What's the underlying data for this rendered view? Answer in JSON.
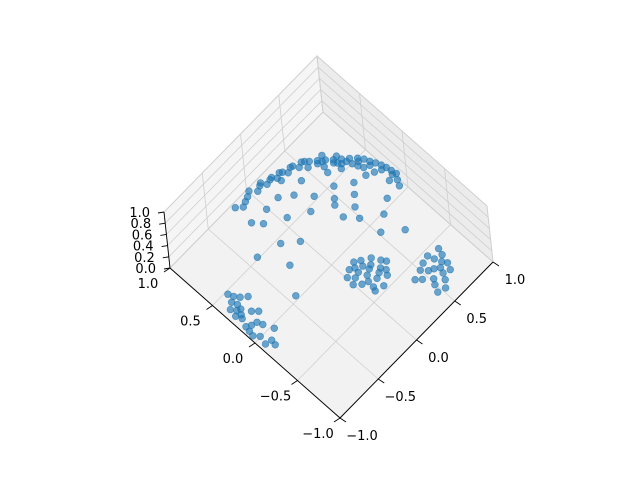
{
  "chart_data": {
    "type": "scatter",
    "projection": "3d",
    "title": "",
    "xlabel": "",
    "ylabel": "",
    "zlabel": "",
    "xlim": [
      -1.0,
      1.0
    ],
    "ylim": [
      -1.0,
      1.0
    ],
    "zlim": [
      0.0,
      1.0
    ],
    "grid": true,
    "point_color": "#1f77b4",
    "pane_colors": {
      "floor": "#f2f2f2",
      "back_left": "#f5f5f5",
      "back_right": "#ececec"
    },
    "x_ticks": [
      "−1.0",
      "−0.5",
      "0.0",
      "0.5",
      "1.0"
    ],
    "x_tick_values": [
      -1.0,
      -0.5,
      0.0,
      0.5,
      1.0
    ],
    "y_ticks": [
      "−1.0",
      "−0.5",
      "0.0",
      "0.5",
      "1.0"
    ],
    "y_tick_values": [
      -1.0,
      -0.5,
      0.0,
      0.5,
      1.0
    ],
    "z_ticks": [
      "0.0",
      "0.2",
      "0.4",
      "0.6",
      "0.8",
      "1.0"
    ],
    "z_tick_values": [
      0.0,
      0.2,
      0.4,
      0.6,
      0.8,
      1.0
    ],
    "series": [
      {
        "points": [
          [
            -0.95,
            0.15,
            0.02
          ],
          [
            -0.92,
            0.22,
            0.03
          ],
          [
            -0.97,
            0.05,
            0.02
          ],
          [
            -0.9,
            0.3,
            0.04
          ],
          [
            -0.88,
            0.38,
            0.05
          ],
          [
            -0.85,
            0.45,
            0.06
          ],
          [
            -0.93,
            0.0,
            0.02
          ],
          [
            -0.95,
            -0.08,
            0.02
          ],
          [
            -0.9,
            -0.15,
            0.03
          ],
          [
            -0.86,
            0.1,
            0.04
          ],
          [
            -0.82,
            0.2,
            0.05
          ],
          [
            -0.8,
            0.35,
            0.07
          ],
          [
            -0.9,
            0.25,
            0.03
          ],
          [
            -0.84,
            0.05,
            0.04
          ],
          [
            -0.78,
            0.15,
            0.06
          ],
          [
            -0.96,
            0.1,
            0.02
          ],
          [
            -0.91,
            0.12,
            0.03
          ],
          [
            -0.87,
            0.28,
            0.05
          ],
          [
            -0.83,
            0.4,
            0.06
          ],
          [
            -0.8,
            -0.05,
            0.05
          ],
          [
            -0.75,
            0.3,
            0.08
          ],
          [
            -0.93,
            0.35,
            0.03
          ],
          [
            -0.89,
            -0.1,
            0.03
          ],
          [
            -0.94,
            0.28,
            0.02
          ],
          [
            -0.86,
            0.33,
            0.05
          ],
          [
            -0.2,
            0.95,
            0.03
          ],
          [
            -0.1,
            0.92,
            0.04
          ],
          [
            0.0,
            0.97,
            0.02
          ],
          [
            0.1,
            0.93,
            0.03
          ],
          [
            0.2,
            0.9,
            0.04
          ],
          [
            0.3,
            0.88,
            0.05
          ],
          [
            0.4,
            0.84,
            0.06
          ],
          [
            0.5,
            0.8,
            0.07
          ],
          [
            0.55,
            0.75,
            0.08
          ],
          [
            0.6,
            0.7,
            0.09
          ],
          [
            0.65,
            0.65,
            0.1
          ],
          [
            0.7,
            0.6,
            0.1
          ],
          [
            0.75,
            0.55,
            0.11
          ],
          [
            0.8,
            0.5,
            0.12
          ],
          [
            0.85,
            0.45,
            0.12
          ],
          [
            0.88,
            0.4,
            0.13
          ],
          [
            0.9,
            0.35,
            0.13
          ],
          [
            0.92,
            0.3,
            0.14
          ],
          [
            0.94,
            0.25,
            0.14
          ],
          [
            0.95,
            0.2,
            0.15
          ],
          [
            0.96,
            0.15,
            0.15
          ],
          [
            0.97,
            0.1,
            0.15
          ],
          [
            0.93,
            0.05,
            0.16
          ],
          [
            0.9,
            0.0,
            0.16
          ],
          [
            0.88,
            0.1,
            0.15
          ],
          [
            0.85,
            0.25,
            0.14
          ],
          [
            0.82,
            0.35,
            0.13
          ],
          [
            0.78,
            0.45,
            0.12
          ],
          [
            0.72,
            0.52,
            0.11
          ],
          [
            0.68,
            0.58,
            0.1
          ],
          [
            0.6,
            0.62,
            0.09
          ],
          [
            0.58,
            0.68,
            0.09
          ],
          [
            0.5,
            0.72,
            0.08
          ],
          [
            0.45,
            0.78,
            0.07
          ],
          [
            0.35,
            0.82,
            0.06
          ],
          [
            0.25,
            0.86,
            0.05
          ],
          [
            0.15,
            0.89,
            0.04
          ],
          [
            0.05,
            0.91,
            0.03
          ],
          [
            -0.05,
            0.94,
            0.03
          ],
          [
            -0.15,
            0.9,
            0.04
          ],
          [
            0.62,
            0.66,
            0.1
          ],
          [
            0.7,
            0.55,
            0.11
          ],
          [
            0.76,
            0.5,
            0.12
          ],
          [
            0.83,
            0.42,
            0.13
          ],
          [
            0.87,
            0.32,
            0.14
          ],
          [
            0.91,
            0.22,
            0.14
          ],
          [
            0.94,
            0.12,
            0.15
          ],
          [
            0.8,
            0.4,
            0.12
          ],
          [
            0.74,
            0.6,
            0.11
          ],
          [
            0.66,
            0.7,
            0.1
          ],
          [
            0.52,
            0.78,
            0.08
          ],
          [
            0.42,
            0.83,
            0.07
          ],
          [
            0.32,
            0.86,
            0.06
          ],
          [
            0.22,
            0.9,
            0.05
          ],
          [
            0.12,
            0.94,
            0.04
          ],
          [
            0.0,
            -0.3,
            0.35
          ],
          [
            0.05,
            -0.35,
            0.38
          ],
          [
            -0.05,
            -0.28,
            0.36
          ],
          [
            0.1,
            -0.4,
            0.4
          ],
          [
            0.0,
            -0.45,
            0.42
          ],
          [
            -0.08,
            -0.38,
            0.39
          ],
          [
            0.08,
            -0.3,
            0.37
          ],
          [
            0.12,
            -0.5,
            0.45
          ],
          [
            0.02,
            -0.55,
            0.47
          ],
          [
            -0.1,
            -0.48,
            0.44
          ],
          [
            0.15,
            -0.36,
            0.4
          ],
          [
            -0.12,
            -0.32,
            0.37
          ],
          [
            0.06,
            -0.42,
            0.41
          ],
          [
            -0.04,
            -0.5,
            0.43
          ],
          [
            0.1,
            -0.6,
            0.48
          ],
          [
            0.0,
            -0.65,
            0.5
          ],
          [
            -0.06,
            -0.58,
            0.47
          ],
          [
            0.14,
            -0.55,
            0.46
          ],
          [
            -0.15,
            -0.42,
            0.42
          ],
          [
            0.18,
            -0.45,
            0.44
          ],
          [
            0.04,
            -0.25,
            0.33
          ],
          [
            -0.02,
            -0.36,
            0.38
          ],
          [
            0.08,
            -0.52,
            0.45
          ],
          [
            -0.08,
            -0.62,
            0.48
          ],
          [
            0.2,
            -0.5,
            0.46
          ],
          [
            0.45,
            -0.65,
            0.15
          ],
          [
            0.5,
            -0.7,
            0.14
          ],
          [
            0.55,
            -0.72,
            0.13
          ],
          [
            0.6,
            -0.75,
            0.12
          ],
          [
            0.65,
            -0.72,
            0.12
          ],
          [
            0.7,
            -0.68,
            0.12
          ],
          [
            0.48,
            -0.78,
            0.13
          ],
          [
            0.58,
            -0.8,
            0.12
          ],
          [
            0.62,
            -0.66,
            0.13
          ],
          [
            0.52,
            -0.62,
            0.14
          ],
          [
            0.4,
            -0.72,
            0.15
          ],
          [
            0.68,
            -0.76,
            0.11
          ],
          [
            0.55,
            -0.85,
            0.11
          ],
          [
            0.45,
            -0.82,
            0.12
          ],
          [
            0.72,
            -0.62,
            0.12
          ],
          [
            0.35,
            -0.68,
            0.16
          ],
          [
            0.6,
            -0.6,
            0.13
          ],
          [
            0.5,
            -0.9,
            0.1
          ],
          [
            0.42,
            -0.88,
            0.11
          ],
          [
            0.65,
            -0.82,
            0.11
          ],
          [
            0.3,
            0.2,
            0.5
          ],
          [
            0.35,
            0.0,
            0.55
          ],
          [
            0.2,
            0.35,
            0.48
          ],
          [
            -0.1,
            0.4,
            0.45
          ],
          [
            -0.3,
            0.3,
            0.4
          ],
          [
            0.4,
            0.3,
            0.45
          ],
          [
            0.25,
            0.15,
            0.52
          ],
          [
            0.1,
            0.5,
            0.44
          ],
          [
            0.45,
            0.1,
            0.5
          ],
          [
            0.5,
            -0.2,
            0.48
          ],
          [
            0.3,
            -0.1,
            0.55
          ],
          [
            0.2,
            0.0,
            0.58
          ],
          [
            -0.2,
            0.15,
            0.5
          ],
          [
            -0.4,
            0.1,
            0.42
          ],
          [
            0.55,
            0.2,
            0.44
          ],
          [
            0.0,
            0.6,
            0.4
          ],
          [
            0.15,
            0.7,
            0.36
          ],
          [
            -0.25,
            0.55,
            0.35
          ],
          [
            0.6,
            0.4,
            0.35
          ],
          [
            0.35,
            -0.3,
            0.5
          ],
          [
            -0.5,
            0.4,
            0.3
          ],
          [
            -0.3,
            0.65,
            0.3
          ],
          [
            0.65,
            -0.1,
            0.42
          ],
          [
            0.7,
            0.2,
            0.36
          ],
          [
            -0.55,
            -0.1,
            0.35
          ],
          [
            0.25,
            0.55,
            0.42
          ],
          [
            0.05,
            0.25,
            0.55
          ],
          [
            -0.15,
            0.6,
            0.4
          ],
          [
            0.48,
            0.45,
            0.38
          ],
          [
            0.55,
            -0.4,
            0.4
          ]
        ]
      }
    ]
  }
}
